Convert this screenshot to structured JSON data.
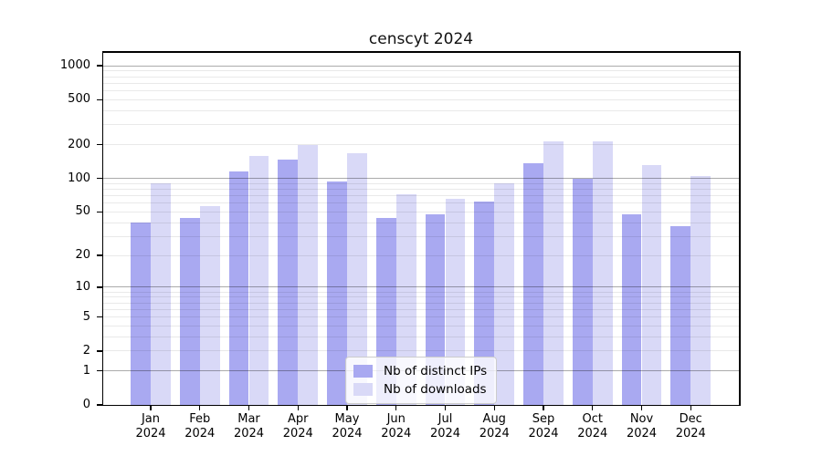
{
  "figure": {
    "title": "censcyt 2024"
  },
  "chart_data": {
    "type": "bar",
    "title": "censcyt 2024",
    "categories": [
      "Jan 2024",
      "Feb 2024",
      "Mar 2024",
      "Apr 2024",
      "May 2024",
      "Jun 2024",
      "Jul 2024",
      "Aug 2024",
      "Sep 2024",
      "Oct 2024",
      "Nov 2024",
      "Dec 2024"
    ],
    "series": [
      {
        "name": "Nb of distinct IPs",
        "color": "#a9a9f1",
        "values": [
          40,
          44,
          115,
          148,
          94,
          44,
          48,
          62,
          137,
          100,
          48,
          37
        ]
      },
      {
        "name": "Nb of downloads",
        "color": "#d9d9f7",
        "values": [
          90,
          56,
          160,
          200,
          168,
          72,
          66,
          91,
          214,
          215,
          131,
          106
        ]
      }
    ],
    "xlabel": "",
    "ylabel": "",
    "y_ticks": [
      0,
      1,
      2,
      5,
      10,
      20,
      50,
      100,
      200,
      500,
      1000
    ],
    "y_tick_labels": [
      "0",
      "1",
      "2",
      "5",
      "10",
      "20",
      "50",
      "100",
      "200",
      "500",
      "1000"
    ],
    "y_scale": "log10(value+1)",
    "ylim": [
      0,
      1200
    ],
    "grid": "horizontal; major lines at 1, 10, 100, 1000; minor lines at 2-9 × 10^k",
    "legend_position": "lower center, inside plot",
    "colors": {
      "axis": "#000000",
      "major_grid": "#a8a8a8",
      "minor_grid": "#e8e8e8",
      "background": "#ffffff",
      "title_text": "#111111"
    }
  }
}
